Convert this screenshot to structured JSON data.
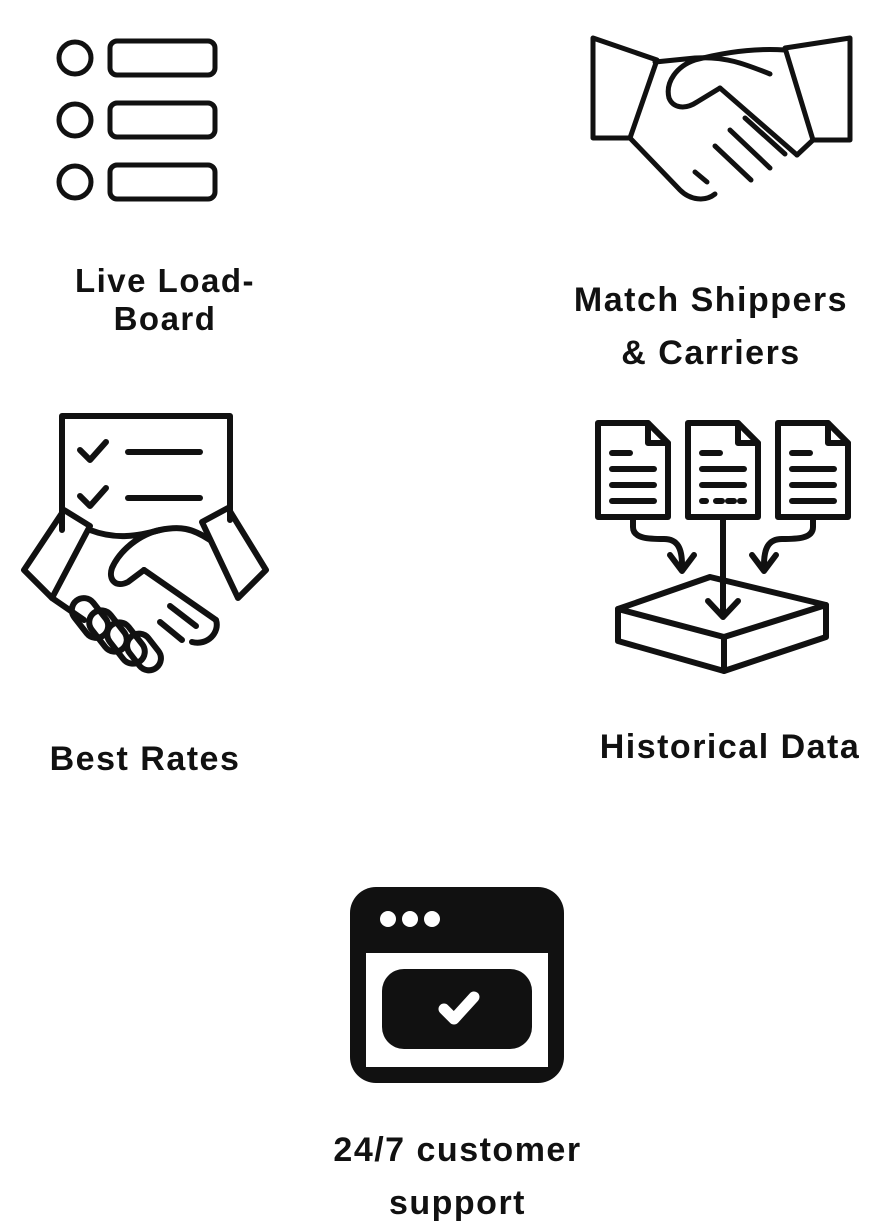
{
  "features": [
    {
      "id": "live-load-board",
      "icon": "list-icon",
      "label_lines": [
        "Live Load-",
        "Board"
      ]
    },
    {
      "id": "match-shippers",
      "icon": "handshake-icon",
      "label_lines": [
        "Match Shippers",
        "& Carriers"
      ]
    },
    {
      "id": "best-rates",
      "icon": "contract-handshake-icon",
      "label_lines": [
        "Best Rates"
      ]
    },
    {
      "id": "historical-data",
      "icon": "documents-box-icon",
      "label_lines": [
        "Historical Data"
      ]
    },
    {
      "id": "customer-support",
      "icon": "browser-check-icon",
      "label_lines": [
        "24/7 customer",
        "support"
      ]
    }
  ],
  "colors": {
    "ink": "#111111",
    "background": "#ffffff"
  }
}
